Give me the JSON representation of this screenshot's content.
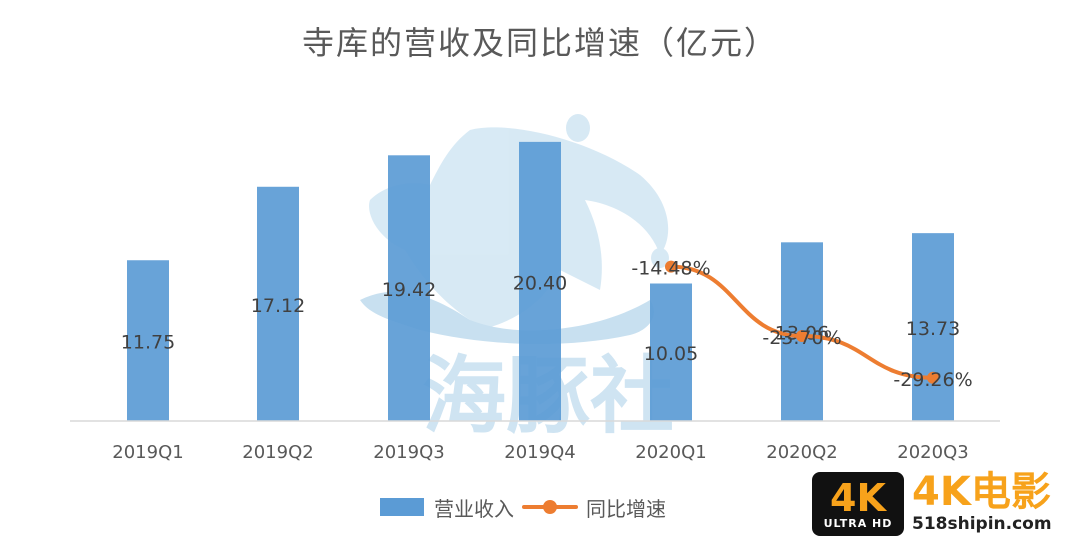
{
  "colors": {
    "bar": "#5b9bd5",
    "line": "#ed7d31",
    "axis": "#d9d9d9",
    "text": "#595959",
    "watermark": "#b8d8ec"
  },
  "watermark": {
    "logo_text": "海豚社",
    "badge_big": "4K",
    "badge_small": "ULTRA HD",
    "brand_big": "4K电影",
    "brand_url": "518shipin.com"
  },
  "chart_data": {
    "type": "bar",
    "title": "寺库的营收及同比增速（亿元）",
    "categories": [
      "2019Q1",
      "2019Q2",
      "2019Q3",
      "2019Q4",
      "2020Q1",
      "2020Q2",
      "2020Q3"
    ],
    "series": [
      {
        "name": "营业收入",
        "type": "bar",
        "values": [
          11.75,
          17.12,
          19.42,
          20.4,
          10.05,
          13.06,
          13.73
        ],
        "labels": [
          "11.75",
          "17.12",
          "19.42",
          "20.40",
          "10.05",
          "13.06",
          "13.73"
        ]
      },
      {
        "name": "同比增速",
        "type": "line",
        "values": [
          null,
          null,
          null,
          null,
          -14.48,
          -23.7,
          -29.26
        ],
        "labels": [
          "",
          "",
          "",
          "",
          "-14.48%",
          "-23.70%",
          "-29.26%"
        ]
      }
    ],
    "ylim": [
      0,
      22
    ],
    "y2lim": [
      -35,
      5
    ],
    "grid": false,
    "legend_position": "bottom"
  }
}
